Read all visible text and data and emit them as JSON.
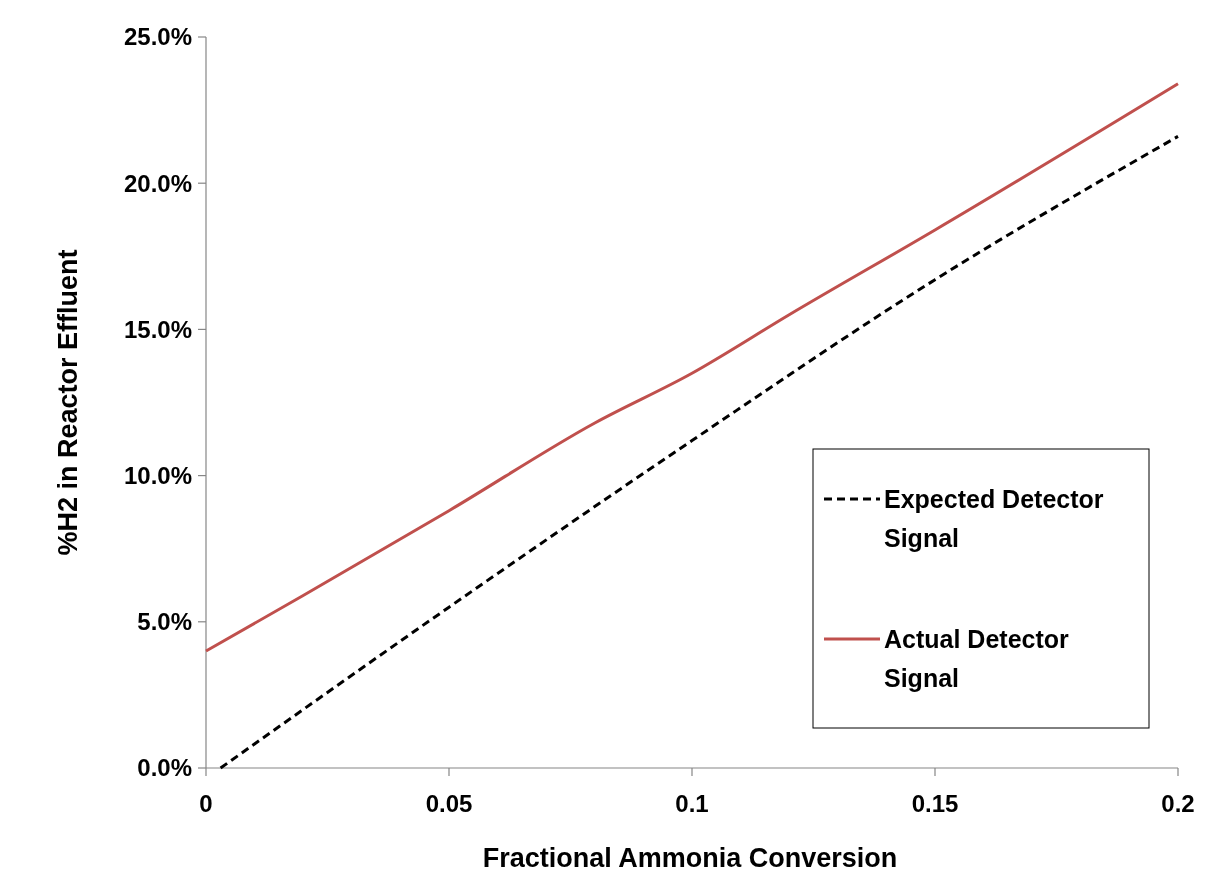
{
  "chart_data": {
    "type": "line",
    "xlabel": "Fractional Ammonia Conversion",
    "ylabel": "%H2 in Reactor Effluent",
    "xlim": [
      0,
      0.2
    ],
    "xticks": [
      0,
      0.05,
      0.1,
      0.15,
      0.2
    ],
    "ylim": [
      0,
      25
    ],
    "yticks": [
      {
        "value": 0,
        "label": "0.0%"
      },
      {
        "value": 5,
        "label": "5.0%"
      },
      {
        "value": 10,
        "label": "10.0%"
      },
      {
        "value": 15,
        "label": "15.0%"
      },
      {
        "value": 20,
        "label": "20.0%"
      },
      {
        "value": 25,
        "label": "25.0%"
      }
    ],
    "grid": false,
    "legend": "right",
    "marker": "none",
    "series": [
      {
        "name": "Expected Detector Signal",
        "color": "#000000",
        "line_style": "dashed",
        "x": [
          0.003,
          0.05,
          0.1,
          0.15,
          0.2
        ],
        "values": [
          0,
          5.5,
          11.2,
          16.7,
          21.6
        ]
      },
      {
        "name": "Actual Detector Signal",
        "color": "#c0504d",
        "line_style": "solid",
        "x": [
          0,
          0.02,
          0.05,
          0.08,
          0.1,
          0.12,
          0.15,
          0.2
        ],
        "values": [
          4.0,
          5.9,
          8.8,
          11.8,
          13.5,
          15.5,
          18.4,
          23.4
        ]
      }
    ]
  }
}
